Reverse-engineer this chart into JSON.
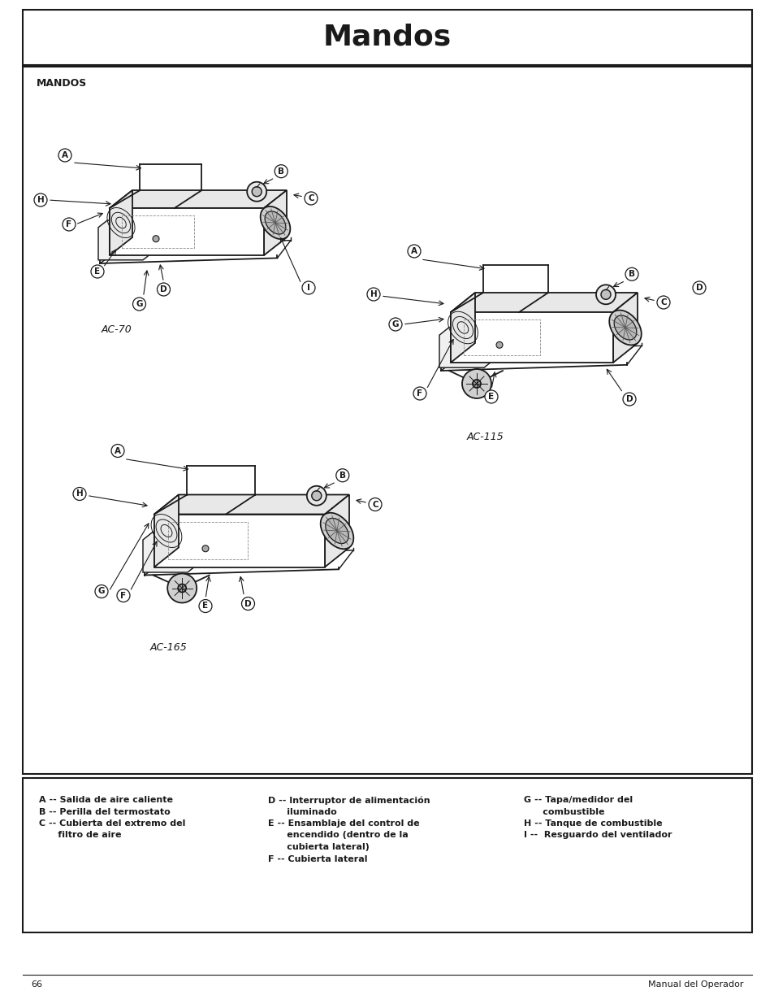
{
  "title": "Mandos",
  "page_number": "66",
  "footer_right": "Manual del Operador",
  "main_box_label": "MANDOS",
  "diagram_label_AC70": "AC-70",
  "diagram_label_AC115": "AC-115",
  "diagram_label_AC165": "AC-165",
  "legend_col1_lines": [
    "A -- Salida de aire caliente",
    "B -- Perilla del termostato",
    "C -- Cubierta del extremo del",
    "      filtro de aire"
  ],
  "legend_col2_lines": [
    "D -- Interruptor de alimentación",
    "      iluminado",
    "E -- Ensamblaje del control de",
    "      encendido (dentro de la",
    "      cubierta lateral)",
    "F -- Cubierta lateral"
  ],
  "legend_col3_lines": [
    "G -- Tapa/medidor del",
    "      combustible",
    "H -- Tanque de combustible",
    "I --  Resguardo del ventilador"
  ],
  "bg_color": "#ffffff",
  "line_color": "#1a1a1a",
  "text_color": "#1a1a1a",
  "title_fontsize": 26,
  "label_fontsize": 8,
  "legend_fontsize": 8,
  "footer_fontsize": 8
}
